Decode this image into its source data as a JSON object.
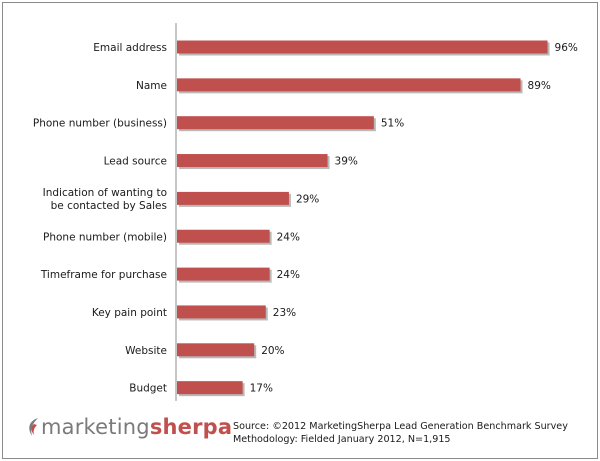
{
  "chart_data": {
    "type": "bar",
    "orientation": "horizontal",
    "categories": [
      "Email address",
      "Name",
      "Phone number (business)",
      "Lead source",
      "Indication of wanting to be contacted by Sales",
      "Phone number (mobile)",
      "Timeframe for purchase",
      "Key pain point",
      "Website",
      "Budget"
    ],
    "category_lines": [
      [
        "Email address"
      ],
      [
        "Name"
      ],
      [
        "Phone number (business)"
      ],
      [
        "Lead source"
      ],
      [
        "Indication of wanting to",
        "be contacted by Sales"
      ],
      [
        "Phone number (mobile)"
      ],
      [
        "Timeframe for purchase"
      ],
      [
        "Key pain point"
      ],
      [
        "Website"
      ],
      [
        "Budget"
      ]
    ],
    "values": [
      96,
      89,
      51,
      39,
      29,
      24,
      24,
      23,
      20,
      17
    ],
    "value_labels": [
      "96%",
      "89%",
      "51%",
      "39%",
      "29%",
      "24%",
      "24%",
      "23%",
      "20%",
      "17%"
    ],
    "xlim": [
      0,
      100
    ],
    "bar_color": "#c0504d",
    "grid": false,
    "legend": "none"
  },
  "footer": {
    "logo_part1": "marketing",
    "logo_part2": "sherpa",
    "source_line1": "Source: ©2012 MarketingSherpa Lead Generation Benchmark Survey",
    "source_line2": "Methodology: Fielded January 2012, N=1,915"
  },
  "colors": {
    "logo_gray": "#7a7a7a",
    "logo_red": "#c0504d"
  }
}
